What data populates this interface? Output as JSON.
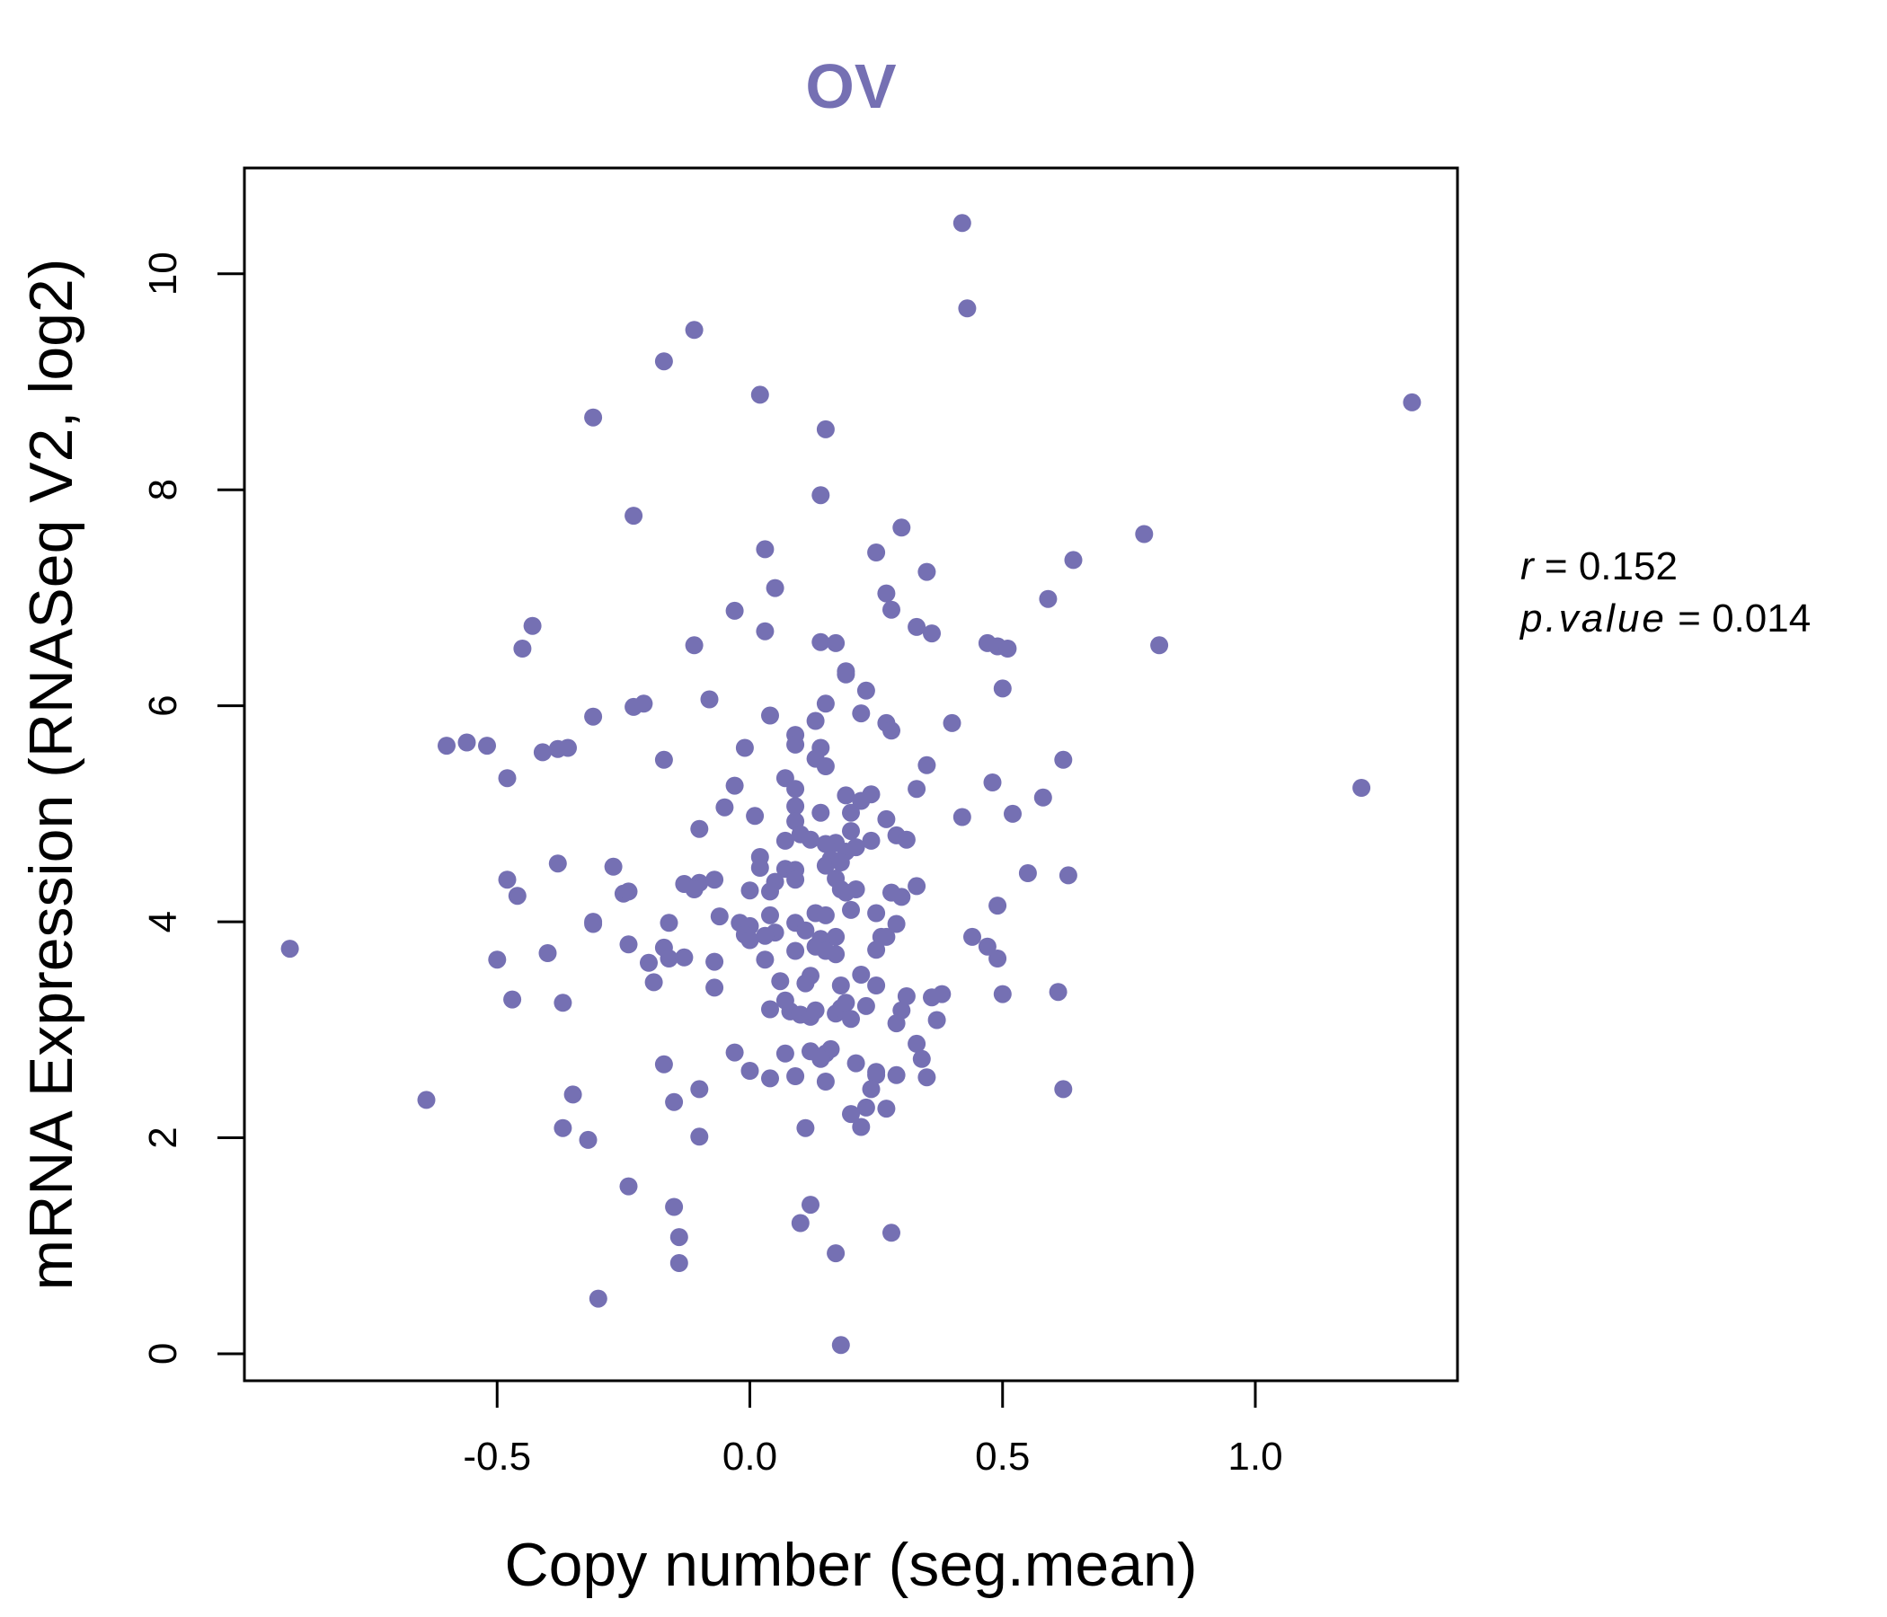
{
  "chart_data": {
    "type": "scatter",
    "title": "OV",
    "xlabel": "Copy number (seg.mean)",
    "ylabel": "mRNA Expression (RNASeq V2, log2)",
    "xlim": [
      -1.0,
      1.4
    ],
    "ylim": [
      -0.25,
      10.98
    ],
    "x_ticks": [
      -0.5,
      0.0,
      0.5,
      1.0
    ],
    "x_tick_labels": [
      "-0.5",
      "0.0",
      "0.5",
      "1.0"
    ],
    "y_ticks": [
      0,
      2,
      4,
      6,
      8,
      10
    ],
    "y_tick_labels": [
      "0",
      "2",
      "4",
      "6",
      "8",
      "10"
    ],
    "grid": false,
    "legend": "none",
    "colors": {
      "points": "#7570b3",
      "title": "#7570b3"
    },
    "annotation": {
      "r_label": "r",
      "r_value": "0.152",
      "p_label": "p.value",
      "p_value": "0.014"
    },
    "series": [
      {
        "points": [
          [
            0.42,
            10.47
          ],
          [
            0.43,
            9.68
          ],
          [
            -0.11,
            9.48
          ],
          [
            -0.17,
            9.19
          ],
          [
            0.02,
            8.88
          ],
          [
            1.31,
            8.81
          ],
          [
            -0.31,
            8.67
          ],
          [
            0.15,
            8.56
          ],
          [
            0.14,
            7.95
          ],
          [
            -0.23,
            7.76
          ],
          [
            0.3,
            7.65
          ],
          [
            0.78,
            7.59
          ],
          [
            0.03,
            7.45
          ],
          [
            0.25,
            7.42
          ],
          [
            0.64,
            7.35
          ],
          [
            0.35,
            7.24
          ],
          [
            0.05,
            7.09
          ],
          [
            0.27,
            7.04
          ],
          [
            0.59,
            6.99
          ],
          [
            -0.03,
            6.88
          ],
          [
            0.28,
            6.89
          ],
          [
            -0.43,
            6.74
          ],
          [
            0.33,
            6.73
          ],
          [
            0.03,
            6.69
          ],
          [
            0.36,
            6.67
          ],
          [
            -0.11,
            6.56
          ],
          [
            -0.45,
            6.53
          ],
          [
            0.14,
            6.59
          ],
          [
            0.17,
            6.58
          ],
          [
            0.47,
            6.58
          ],
          [
            0.49,
            6.55
          ],
          [
            0.51,
            6.53
          ],
          [
            0.81,
            6.56
          ],
          [
            0.19,
            6.32
          ],
          [
            0.19,
            6.29
          ],
          [
            0.5,
            6.16
          ],
          [
            0.23,
            6.14
          ],
          [
            -0.08,
            6.06
          ],
          [
            0.15,
            6.02
          ],
          [
            -0.23,
            5.99
          ],
          [
            -0.21,
            6.02
          ],
          [
            0.04,
            5.91
          ],
          [
            -0.31,
            5.9
          ],
          [
            0.22,
            5.93
          ],
          [
            0.13,
            5.86
          ],
          [
            0.27,
            5.84
          ],
          [
            0.28,
            5.77
          ],
          [
            0.4,
            5.84
          ],
          [
            -0.56,
            5.66
          ],
          [
            -0.6,
            5.63
          ],
          [
            -0.52,
            5.63
          ],
          [
            -0.38,
            5.6
          ],
          [
            -0.36,
            5.61
          ],
          [
            -0.41,
            5.57
          ],
          [
            -0.01,
            5.61
          ],
          [
            0.09,
            5.73
          ],
          [
            0.09,
            5.64
          ],
          [
            0.14,
            5.61
          ],
          [
            0.13,
            5.51
          ],
          [
            0.15,
            5.44
          ],
          [
            -0.17,
            5.5
          ],
          [
            0.35,
            5.45
          ],
          [
            0.62,
            5.5
          ],
          [
            -0.48,
            5.33
          ],
          [
            0.07,
            5.33
          ],
          [
            0.09,
            5.23
          ],
          [
            0.48,
            5.29
          ],
          [
            1.21,
            5.24
          ],
          [
            -0.03,
            5.26
          ],
          [
            0.24,
            5.18
          ],
          [
            0.19,
            5.17
          ],
          [
            0.33,
            5.23
          ],
          [
            0.58,
            5.15
          ],
          [
            0.22,
            5.12
          ],
          [
            -0.05,
            5.06
          ],
          [
            0.09,
            5.07
          ],
          [
            0.01,
            4.98
          ],
          [
            0.09,
            4.93
          ],
          [
            0.14,
            5.01
          ],
          [
            0.2,
            5.01
          ],
          [
            0.27,
            4.95
          ],
          [
            0.52,
            5.0
          ],
          [
            0.42,
            4.97
          ],
          [
            -0.1,
            4.86
          ],
          [
            0.1,
            4.81
          ],
          [
            0.12,
            4.76
          ],
          [
            0.07,
            4.75
          ],
          [
            0.17,
            4.73
          ],
          [
            0.15,
            4.72
          ],
          [
            0.2,
            4.84
          ],
          [
            0.24,
            4.75
          ],
          [
            0.29,
            4.8
          ],
          [
            0.31,
            4.76
          ],
          [
            0.21,
            4.69
          ],
          [
            0.19,
            4.65
          ],
          [
            -0.38,
            4.54
          ],
          [
            -0.27,
            4.51
          ],
          [
            0.02,
            4.6
          ],
          [
            0.02,
            4.5
          ],
          [
            0.07,
            4.49
          ],
          [
            0.09,
            4.48
          ],
          [
            0.16,
            4.58
          ],
          [
            0.15,
            4.52
          ],
          [
            0.18,
            4.55
          ],
          [
            -0.48,
            4.39
          ],
          [
            -0.46,
            4.24
          ],
          [
            -0.25,
            4.26
          ],
          [
            -0.24,
            4.28
          ],
          [
            -0.13,
            4.35
          ],
          [
            -0.1,
            4.36
          ],
          [
            -0.07,
            4.39
          ],
          [
            -0.11,
            4.3
          ],
          [
            0.05,
            4.37
          ],
          [
            0.09,
            4.39
          ],
          [
            0.17,
            4.4
          ],
          [
            0.18,
            4.3
          ],
          [
            0.19,
            4.27
          ],
          [
            0.21,
            4.3
          ],
          [
            0.28,
            4.27
          ],
          [
            0.33,
            4.33
          ],
          [
            0.55,
            4.45
          ],
          [
            0.63,
            4.43
          ],
          [
            0.0,
            4.29
          ],
          [
            0.04,
            4.28
          ],
          [
            0.3,
            4.23
          ],
          [
            -0.06,
            4.05
          ],
          [
            0.04,
            4.06
          ],
          [
            0.13,
            4.08
          ],
          [
            0.15,
            4.06
          ],
          [
            0.2,
            4.11
          ],
          [
            0.25,
            4.08
          ],
          [
            0.49,
            4.15
          ],
          [
            0.09,
            3.99
          ],
          [
            -0.31,
            3.98
          ],
          [
            -0.31,
            4.0
          ],
          [
            -0.16,
            3.99
          ],
          [
            -0.02,
            3.99
          ],
          [
            0.0,
            3.96
          ],
          [
            -0.01,
            3.88
          ],
          [
            0.05,
            3.9
          ],
          [
            0.11,
            3.92
          ],
          [
            0.17,
            3.86
          ],
          [
            0.26,
            3.86
          ],
          [
            0.27,
            3.86
          ],
          [
            0.29,
            3.98
          ],
          [
            0.44,
            3.86
          ],
          [
            0.0,
            3.83
          ],
          [
            0.03,
            3.87
          ],
          [
            0.14,
            3.84
          ],
          [
            -0.24,
            3.79
          ],
          [
            -0.4,
            3.71
          ],
          [
            -0.91,
            3.75
          ],
          [
            -0.5,
            3.65
          ],
          [
            -0.17,
            3.76
          ],
          [
            -0.16,
            3.66
          ],
          [
            -0.13,
            3.67
          ],
          [
            0.09,
            3.73
          ],
          [
            0.13,
            3.77
          ],
          [
            0.15,
            3.73
          ],
          [
            0.17,
            3.7
          ],
          [
            0.25,
            3.74
          ],
          [
            0.47,
            3.77
          ],
          [
            0.49,
            3.66
          ],
          [
            0.03,
            3.65
          ],
          [
            -0.2,
            3.62
          ],
          [
            -0.07,
            3.63
          ],
          [
            0.06,
            3.45
          ],
          [
            0.12,
            3.5
          ],
          [
            0.22,
            3.51
          ],
          [
            0.25,
            3.41
          ],
          [
            -0.19,
            3.44
          ],
          [
            -0.07,
            3.39
          ],
          [
            0.11,
            3.43
          ],
          [
            0.18,
            3.41
          ],
          [
            0.36,
            3.3
          ],
          [
            0.38,
            3.33
          ],
          [
            0.61,
            3.35
          ],
          [
            0.5,
            3.33
          ],
          [
            -0.47,
            3.28
          ],
          [
            -0.37,
            3.25
          ],
          [
            0.04,
            3.19
          ],
          [
            0.08,
            3.17
          ],
          [
            0.07,
            3.27
          ],
          [
            0.1,
            3.14
          ],
          [
            0.12,
            3.12
          ],
          [
            0.13,
            3.18
          ],
          [
            0.17,
            3.15
          ],
          [
            0.18,
            3.2
          ],
          [
            0.19,
            3.25
          ],
          [
            0.2,
            3.1
          ],
          [
            0.23,
            3.22
          ],
          [
            0.3,
            3.18
          ],
          [
            0.29,
            3.06
          ],
          [
            0.31,
            3.31
          ],
          [
            0.37,
            3.09
          ],
          [
            0.33,
            2.87
          ],
          [
            0.34,
            2.73
          ],
          [
            -0.03,
            2.79
          ],
          [
            0.07,
            2.78
          ],
          [
            0.12,
            2.8
          ],
          [
            0.15,
            2.78
          ],
          [
            0.16,
            2.82
          ],
          [
            0.14,
            2.73
          ],
          [
            0.21,
            2.69
          ],
          [
            -0.17,
            2.68
          ],
          [
            0.0,
            2.62
          ],
          [
            0.04,
            2.55
          ],
          [
            0.09,
            2.57
          ],
          [
            0.15,
            2.52
          ],
          [
            0.25,
            2.58
          ],
          [
            0.25,
            2.61
          ],
          [
            0.29,
            2.58
          ],
          [
            0.35,
            2.56
          ],
          [
            -0.1,
            2.45
          ],
          [
            0.24,
            2.45
          ],
          [
            0.62,
            2.45
          ],
          [
            -0.35,
            2.4
          ],
          [
            -0.64,
            2.35
          ],
          [
            -0.15,
            2.33
          ],
          [
            0.23,
            2.28
          ],
          [
            0.27,
            2.27
          ],
          [
            0.2,
            2.22
          ],
          [
            -0.37,
            2.09
          ],
          [
            0.11,
            2.09
          ],
          [
            0.22,
            2.1
          ],
          [
            -0.32,
            1.98
          ],
          [
            -0.1,
            2.01
          ],
          [
            -0.24,
            1.55
          ],
          [
            -0.15,
            1.36
          ],
          [
            0.12,
            1.38
          ],
          [
            0.1,
            1.21
          ],
          [
            -0.14,
            1.08
          ],
          [
            0.28,
            1.12
          ],
          [
            0.17,
            0.93
          ],
          [
            -0.14,
            0.84
          ],
          [
            -0.3,
            0.51
          ],
          [
            0.18,
            0.08
          ]
        ]
      }
    ]
  }
}
